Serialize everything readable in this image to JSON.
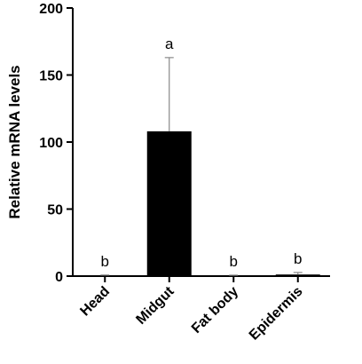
{
  "chart_data": {
    "type": "bar",
    "title": "",
    "xlabel": "",
    "ylabel": "Relative mRNA levels",
    "ylim": [
      0,
      200
    ],
    "yticks": [
      0,
      50,
      100,
      150,
      200
    ],
    "categories": [
      "Head",
      "Midgut",
      "Fat body",
      "Epidermis"
    ],
    "values": [
      0.5,
      108,
      0.3,
      1.2
    ],
    "errors": [
      0.3,
      55,
      0.4,
      1.5
    ],
    "significance": [
      "b",
      "a",
      "b",
      "b"
    ],
    "bar_color": "#000000",
    "grid": false,
    "legend": "none"
  }
}
